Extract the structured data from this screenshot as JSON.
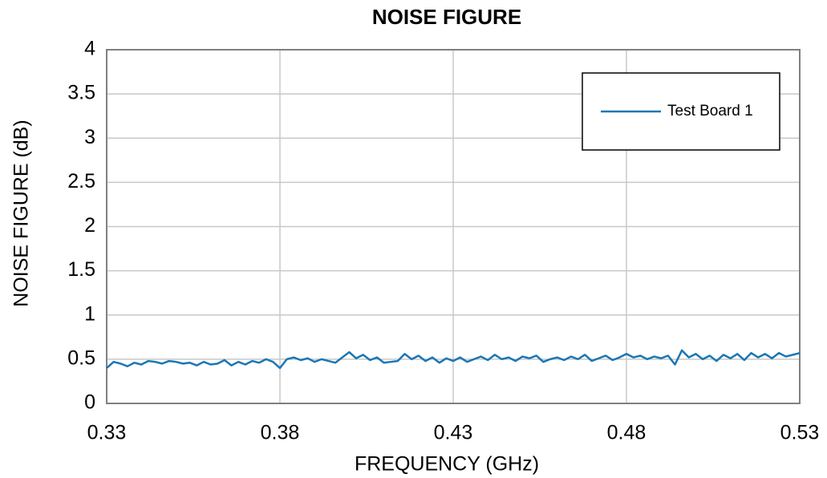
{
  "chart_data": {
    "type": "line",
    "title": "NOISE FIGURE",
    "xlabel": "FREQUENCY (GHz)",
    "ylabel": "NOISE FIGURE (dB)",
    "x": [
      0.33,
      0.332,
      0.334,
      0.336,
      0.338,
      0.34,
      0.342,
      0.344,
      0.346,
      0.348,
      0.35,
      0.352,
      0.354,
      0.356,
      0.358,
      0.36,
      0.362,
      0.364,
      0.366,
      0.368,
      0.37,
      0.372,
      0.374,
      0.376,
      0.378,
      0.38,
      0.382,
      0.384,
      0.386,
      0.388,
      0.39,
      0.392,
      0.394,
      0.396,
      0.398,
      0.4,
      0.402,
      0.404,
      0.406,
      0.408,
      0.41,
      0.412,
      0.414,
      0.416,
      0.418,
      0.42,
      0.422,
      0.424,
      0.426,
      0.428,
      0.43,
      0.432,
      0.434,
      0.436,
      0.438,
      0.44,
      0.442,
      0.444,
      0.446,
      0.448,
      0.45,
      0.452,
      0.454,
      0.456,
      0.458,
      0.46,
      0.462,
      0.464,
      0.466,
      0.468,
      0.47,
      0.472,
      0.474,
      0.476,
      0.478,
      0.48,
      0.482,
      0.484,
      0.486,
      0.488,
      0.49,
      0.492,
      0.494,
      0.496,
      0.498,
      0.5,
      0.502,
      0.504,
      0.506,
      0.508,
      0.51,
      0.512,
      0.514,
      0.516,
      0.518,
      0.52,
      0.522,
      0.524,
      0.526,
      0.528,
      0.53
    ],
    "series": [
      {
        "name": "Test Board 1",
        "color": "#1a77b5",
        "values": [
          0.4,
          0.47,
          0.45,
          0.42,
          0.46,
          0.44,
          0.48,
          0.47,
          0.45,
          0.48,
          0.47,
          0.45,
          0.46,
          0.43,
          0.47,
          0.44,
          0.45,
          0.49,
          0.43,
          0.47,
          0.44,
          0.48,
          0.46,
          0.5,
          0.47,
          0.4,
          0.5,
          0.52,
          0.49,
          0.51,
          0.47,
          0.5,
          0.48,
          0.46,
          0.52,
          0.58,
          0.51,
          0.55,
          0.49,
          0.52,
          0.46,
          0.47,
          0.48,
          0.56,
          0.5,
          0.54,
          0.48,
          0.52,
          0.46,
          0.51,
          0.48,
          0.52,
          0.47,
          0.5,
          0.53,
          0.49,
          0.55,
          0.5,
          0.52,
          0.48,
          0.53,
          0.51,
          0.54,
          0.47,
          0.5,
          0.52,
          0.49,
          0.53,
          0.5,
          0.55,
          0.48,
          0.51,
          0.54,
          0.49,
          0.52,
          0.56,
          0.52,
          0.54,
          0.5,
          0.53,
          0.51,
          0.54,
          0.44,
          0.6,
          0.52,
          0.56,
          0.5,
          0.54,
          0.48,
          0.55,
          0.51,
          0.56,
          0.49,
          0.57,
          0.52,
          0.56,
          0.51,
          0.57,
          0.53,
          0.55,
          0.57
        ]
      }
    ],
    "xlim": [
      0.33,
      0.53
    ],
    "xticks": [
      0.33,
      0.38,
      0.43,
      0.48,
      0.53
    ],
    "ylim": [
      0,
      4
    ],
    "yticks": [
      0,
      0.5,
      1,
      1.5,
      2,
      2.5,
      3,
      3.5,
      4
    ],
    "grid": true,
    "legend": "upper right"
  }
}
